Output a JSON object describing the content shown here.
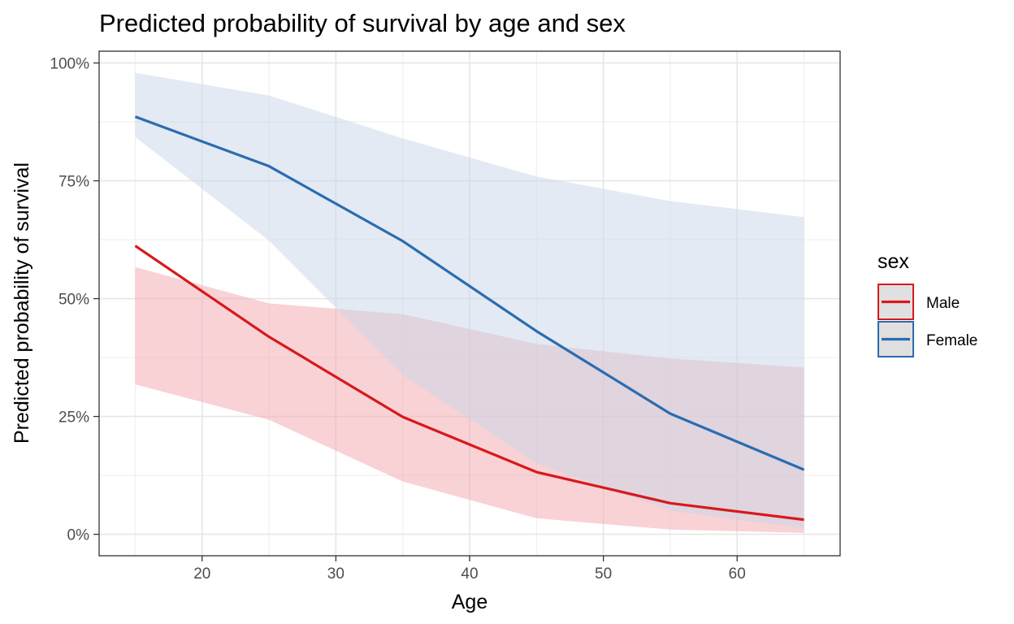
{
  "chart_data": {
    "type": "line",
    "title": "Predicted probability of survival by age and sex",
    "xlabel": "Age",
    "ylabel": "Predicted probability of survival",
    "x": [
      15,
      25,
      35,
      45,
      55,
      65
    ],
    "xlim": [
      12.3,
      67.7
    ],
    "ylim": [
      -0.0455,
      1.025
    ],
    "x_ticks": [
      20,
      30,
      40,
      50,
      60
    ],
    "y_ticks": [
      0,
      0.25,
      0.5,
      0.75,
      1.0
    ],
    "y_tick_labels": [
      "0%",
      "25%",
      "50%",
      "75%",
      "100%"
    ],
    "grid": true,
    "legend_title": "sex",
    "legend_position": "right",
    "series": [
      {
        "name": "Male",
        "color": "#d7191c",
        "fill": "#f4a6ad",
        "values": [
          0.612,
          0.419,
          0.249,
          0.132,
          0.066,
          0.031
        ],
        "lower": [
          0.318,
          0.243,
          0.112,
          0.034,
          0.01,
          0.003
        ],
        "upper": [
          0.567,
          0.49,
          0.467,
          0.404,
          0.373,
          0.354
        ]
      },
      {
        "name": "Female",
        "color": "#2b6cb0",
        "fill": "#c7d6e8",
        "values": [
          0.886,
          0.781,
          0.622,
          0.431,
          0.256,
          0.137
        ],
        "lower": [
          0.843,
          0.623,
          0.338,
          0.15,
          0.05,
          0.013
        ],
        "upper": [
          0.979,
          0.931,
          0.84,
          0.759,
          0.707,
          0.673
        ]
      }
    ]
  }
}
